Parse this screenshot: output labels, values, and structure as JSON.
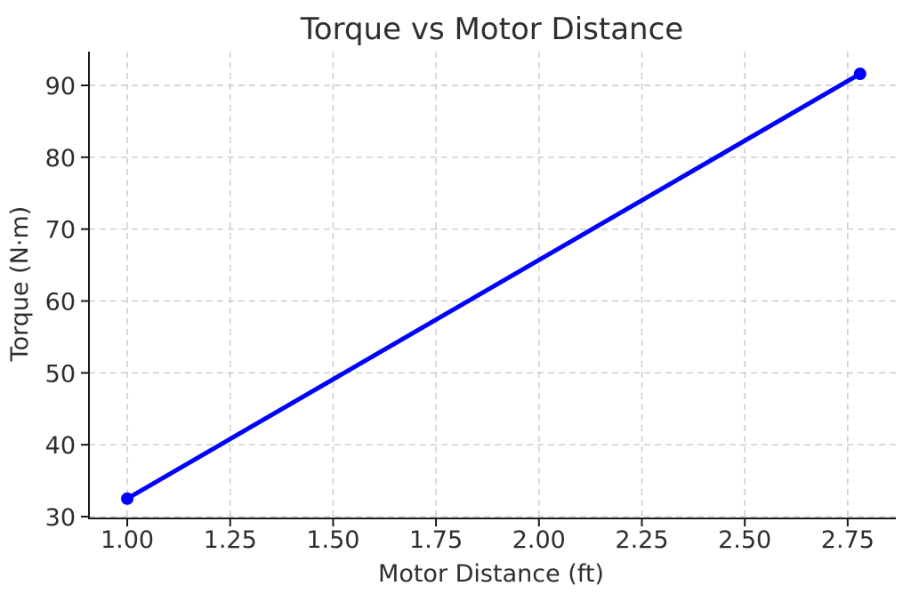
{
  "chart_data": {
    "type": "line",
    "title": "Torque vs Motor Distance",
    "xlabel": "Motor Distance (ft)",
    "ylabel": "Torque (N·m)",
    "series": [
      {
        "name": "Torque",
        "x": [
          1.0,
          2.78
        ],
        "y": [
          32.5,
          91.6
        ]
      }
    ],
    "x_ticks": {
      "values": [
        1.0,
        1.25,
        1.5,
        1.75,
        2.0,
        2.25,
        2.5,
        2.75
      ],
      "labels": [
        "1.00",
        "1.25",
        "1.50",
        "1.75",
        "2.00",
        "2.25",
        "2.50",
        "2.75"
      ]
    },
    "y_ticks": {
      "values": [
        30,
        40,
        50,
        60,
        70,
        80,
        90
      ],
      "labels": [
        "30",
        "40",
        "50",
        "60",
        "70",
        "80",
        "90"
      ]
    },
    "xlim": [
      0.907,
      2.867
    ],
    "ylim": [
      29.75,
      94.7
    ],
    "grid": {
      "visible": true,
      "style": "dashed"
    },
    "legend": {
      "visible": false
    },
    "spines": {
      "left": true,
      "bottom": true,
      "top": false,
      "right": false
    },
    "marker": "circle",
    "line_width": 5,
    "marker_radius": 7,
    "colors": {
      "line": "#0000ff",
      "marker": "#0000ff",
      "grid": "#c9c9c9",
      "spine": "#1a1a1a",
      "tick": "#1a1a1a",
      "text": "#2e2e2e",
      "background": "#ffffff"
    }
  }
}
